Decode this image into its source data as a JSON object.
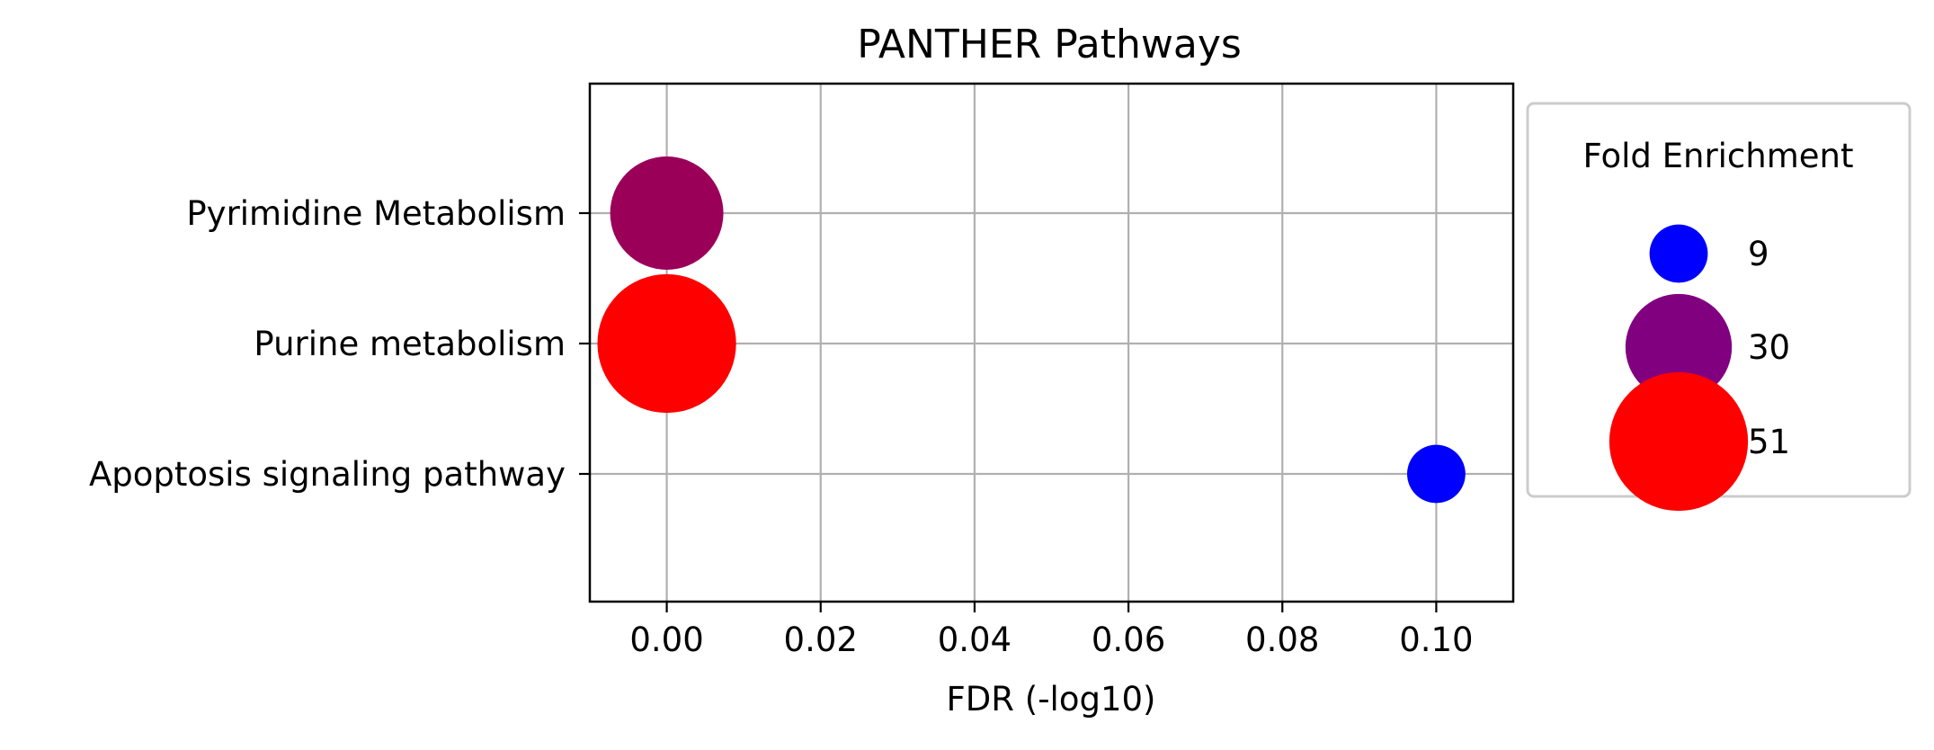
{
  "chart_data": {
    "type": "scatter",
    "title": "PANTHER Pathways",
    "xlabel": "FDR (-log10)",
    "ylabel": "",
    "xlim": [
      -0.01,
      0.11
    ],
    "x_ticks": [
      0.0,
      0.02,
      0.04,
      0.06,
      0.08,
      0.1
    ],
    "x_tick_labels": [
      "0.00",
      "0.02",
      "0.04",
      "0.06",
      "0.08",
      "0.10"
    ],
    "categories": [
      "Pyrimidine Metabolism",
      "Purine metabolism",
      "Apoptosis signaling pathway"
    ],
    "points": [
      {
        "category": "Pyrimidine Metabolism",
        "x": 0.0,
        "fold_enrichment": 34,
        "color": "#9b0059"
      },
      {
        "category": "Purine metabolism",
        "x": 0.0,
        "fold_enrichment": 51,
        "color": "#ff0000"
      },
      {
        "category": "Apoptosis signaling pathway",
        "x": 0.1,
        "fold_enrichment": 9,
        "color": "#0000ff"
      }
    ],
    "grid": true,
    "legend": {
      "title": "Fold Enrichment",
      "placement": "outside-right",
      "entries": [
        {
          "label": "9",
          "value": 9,
          "color": "#0000ff"
        },
        {
          "label": "30",
          "value": 30,
          "color": "#800080"
        },
        {
          "label": "51",
          "value": 51,
          "color": "#ff0000"
        }
      ]
    }
  }
}
